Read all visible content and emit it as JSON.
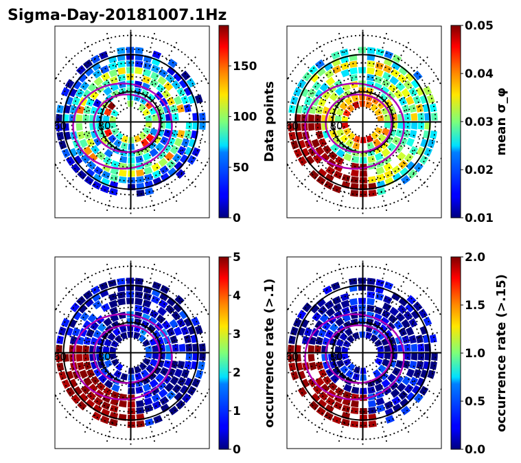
{
  "figure": {
    "title": "Sigma-Day-20181007.1Hz"
  },
  "colors": {
    "contour": "#b000b8",
    "grid": "#000000",
    "frame": "#000000"
  },
  "chart_data": [
    {
      "type": "heatmap",
      "projection": "polar",
      "colorbar": {
        "label": "Data points",
        "range": [
          0,
          190
        ],
        "ticks": [
          "0",
          "50",
          "100",
          "150"
        ],
        "tick_values": [
          0,
          50,
          100,
          150
        ],
        "colormap": "jet"
      },
      "rings": [
        {
          "fill": 0.85,
          "level": 0.55
        },
        {
          "fill": 0.85,
          "level": 0.35
        },
        {
          "fill": 0.9,
          "level": 0.45
        },
        {
          "fill": 0.9,
          "level": 0.25
        },
        {
          "fill": 0.9,
          "level": 0.5
        },
        {
          "fill": 0.9,
          "level": 0.6
        },
        {
          "fill": 0.85,
          "level": 0.3
        },
        {
          "fill": 0.8,
          "level": 0.2
        },
        {
          "fill": 0.75,
          "level": 0.15
        }
      ],
      "polar_labels": [
        "60",
        "80"
      ]
    },
    {
      "type": "heatmap",
      "projection": "polar",
      "colorbar": {
        "label": "mean σ_φ",
        "range": [
          0.01,
          0.05
        ],
        "ticks": [
          "0.01",
          "0.02",
          "0.03",
          "0.04",
          "0.05"
        ],
        "tick_values": [
          0.01,
          0.02,
          0.03,
          0.04,
          0.05
        ],
        "colormap": "jet"
      },
      "rings": [
        {
          "fill": 0.9,
          "level": 0.8
        },
        {
          "fill": 0.9,
          "level": 0.6
        },
        {
          "fill": 0.9,
          "level": 0.55
        },
        {
          "fill": 0.9,
          "level": 0.5
        },
        {
          "fill": 0.9,
          "level": 0.45
        },
        {
          "fill": 0.9,
          "level": 0.5
        },
        {
          "fill": 0.85,
          "level": 0.55
        },
        {
          "fill": 0.8,
          "level": 0.45
        },
        {
          "fill": 0.75,
          "level": 0.4
        }
      ],
      "polar_labels": [
        "60",
        "80"
      ]
    },
    {
      "type": "heatmap",
      "projection": "polar",
      "colorbar": {
        "label": "occurrence rate (>.1)",
        "range": [
          0,
          5
        ],
        "ticks": [
          "0",
          "1",
          "2",
          "3",
          "4",
          "5"
        ],
        "tick_values": [
          0,
          1,
          2,
          3,
          4,
          5
        ],
        "colormap": "jet"
      },
      "rings": [
        {
          "fill": 0.85,
          "level": 0.05
        },
        {
          "fill": 0.85,
          "level": 0.1
        },
        {
          "fill": 0.9,
          "level": 0.05
        },
        {
          "fill": 0.9,
          "level": 0.1
        },
        {
          "fill": 0.9,
          "level": 0.05
        },
        {
          "fill": 0.9,
          "level": 0.05
        },
        {
          "fill": 0.85,
          "level": 0.05
        },
        {
          "fill": 0.8,
          "level": 0.05
        },
        {
          "fill": 0.75,
          "level": 0.05
        }
      ],
      "polar_labels": [
        "60",
        "80"
      ]
    },
    {
      "type": "heatmap",
      "projection": "polar",
      "colorbar": {
        "label": "occurrence rate (>.15)",
        "range": [
          0,
          2
        ],
        "ticks": [
          "0.0",
          "0.5",
          "1.0",
          "1.5",
          "2.0"
        ],
        "tick_values": [
          0,
          0.5,
          1,
          1.5,
          2
        ],
        "colormap": "jet"
      },
      "rings": [
        {
          "fill": 0.85,
          "level": 0.03
        },
        {
          "fill": 0.85,
          "level": 0.05
        },
        {
          "fill": 0.9,
          "level": 0.03
        },
        {
          "fill": 0.9,
          "level": 0.05
        },
        {
          "fill": 0.9,
          "level": 0.03
        },
        {
          "fill": 0.9,
          "level": 0.03
        },
        {
          "fill": 0.85,
          "level": 0.03
        },
        {
          "fill": 0.8,
          "level": 0.03
        },
        {
          "fill": 0.75,
          "level": 0.03
        }
      ],
      "polar_labels": [
        "60",
        "80"
      ]
    }
  ]
}
